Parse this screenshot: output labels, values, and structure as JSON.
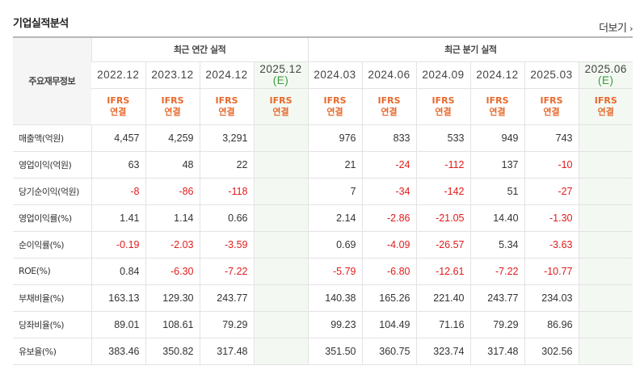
{
  "header": {
    "title": "기업실적분석",
    "more_label": "더보기",
    "more_icon": "chevron-right-icon"
  },
  "table": {
    "corner_label": "주요재무정보",
    "annual_group_label": "최근 연간 실적",
    "quarter_group_label": "최근 분기 실적",
    "annual_periods": [
      {
        "date": "2022.12",
        "est": ""
      },
      {
        "date": "2023.12",
        "est": ""
      },
      {
        "date": "2024.12",
        "est": ""
      },
      {
        "date": "2025.12",
        "est": "(E)"
      }
    ],
    "quarter_periods": [
      {
        "date": "2024.03",
        "est": ""
      },
      {
        "date": "2024.06",
        "est": ""
      },
      {
        "date": "2024.09",
        "est": ""
      },
      {
        "date": "2024.12",
        "est": ""
      },
      {
        "date": "2025.03",
        "est": ""
      },
      {
        "date": "2025.06",
        "est": "(E)"
      }
    ],
    "basis_top": "IFRS",
    "basis_bottom": "연결",
    "colors": {
      "negative": "#e21b1b",
      "basis": "#e8692c",
      "estimate": "#3a9b3a",
      "estimate_bg": "#f3f9f2"
    },
    "rows": [
      {
        "label": "매출액(억원)",
        "values": [
          "4,457",
          "4,259",
          "3,291",
          "",
          "976",
          "833",
          "533",
          "949",
          "743",
          ""
        ]
      },
      {
        "label": "영업이익(억원)",
        "values": [
          "63",
          "48",
          "22",
          "",
          "21",
          "-24",
          "-112",
          "137",
          "-10",
          ""
        ]
      },
      {
        "label": "당기순이익(억원)",
        "values": [
          "-8",
          "-86",
          "-118",
          "",
          "7",
          "-34",
          "-142",
          "51",
          "-27",
          ""
        ]
      },
      {
        "label": "영업이익률(%)",
        "values": [
          "1.41",
          "1.14",
          "0.66",
          "",
          "2.14",
          "-2.86",
          "-21.05",
          "14.40",
          "-1.30",
          ""
        ]
      },
      {
        "label": "순이익률(%)",
        "values": [
          "-0.19",
          "-2.03",
          "-3.59",
          "",
          "0.69",
          "-4.09",
          "-26.57",
          "5.34",
          "-3.63",
          ""
        ]
      },
      {
        "label": "ROE(%)",
        "values": [
          "0.84",
          "-6.30",
          "-7.22",
          "",
          "-5.79",
          "-6.80",
          "-12.61",
          "-7.22",
          "-10.77",
          ""
        ]
      },
      {
        "label": "부채비율(%)",
        "values": [
          "163.13",
          "129.30",
          "243.77",
          "",
          "140.38",
          "165.26",
          "221.40",
          "243.77",
          "234.03",
          ""
        ]
      },
      {
        "label": "당좌비율(%)",
        "values": [
          "89.01",
          "108.61",
          "79.29",
          "",
          "99.23",
          "104.49",
          "71.16",
          "79.29",
          "86.96",
          ""
        ]
      },
      {
        "label": "유보율(%)",
        "values": [
          "383.46",
          "350.82",
          "317.48",
          "",
          "351.50",
          "360.75",
          "323.74",
          "317.48",
          "302.56",
          ""
        ]
      }
    ]
  }
}
